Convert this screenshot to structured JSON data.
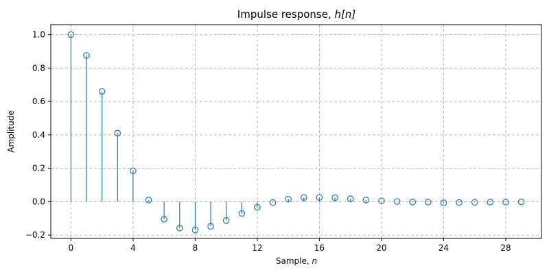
{
  "chart_data": {
    "type": "stem",
    "title_prefix": "Impulse response, ",
    "title_math": "h[n]",
    "xlabel_prefix": "Sample, ",
    "xlabel_math": "n",
    "ylabel": "Amplitude",
    "xlim": [
      -1.3,
      30.3
    ],
    "ylim": [
      -0.22,
      1.06
    ],
    "xticks": [
      0,
      4,
      8,
      12,
      16,
      20,
      24,
      28
    ],
    "yticks": [
      -0.2,
      0.0,
      0.2,
      0.4,
      0.6,
      0.8,
      1.0
    ],
    "ytick_labels": [
      "−0.2",
      "0.0",
      "0.2",
      "0.4",
      "0.6",
      "0.8",
      "1.0"
    ],
    "grid": true,
    "color": "#1f77b4",
    "x": [
      0,
      1,
      2,
      3,
      4,
      5,
      6,
      7,
      8,
      9,
      10,
      11,
      12,
      13,
      14,
      15,
      16,
      17,
      18,
      19,
      20,
      21,
      22,
      23,
      24,
      25,
      26,
      27,
      28,
      29
    ],
    "y": [
      1.0,
      0.875,
      0.66,
      0.41,
      0.185,
      0.01,
      -0.105,
      -0.158,
      -0.17,
      -0.148,
      -0.113,
      -0.071,
      -0.034,
      -0.005,
      0.015,
      0.025,
      0.025,
      0.024,
      0.017,
      0.01,
      0.005,
      0.001,
      -0.002,
      -0.003,
      -0.007,
      -0.005,
      -0.004,
      -0.003,
      -0.003,
      -0.001
    ]
  }
}
